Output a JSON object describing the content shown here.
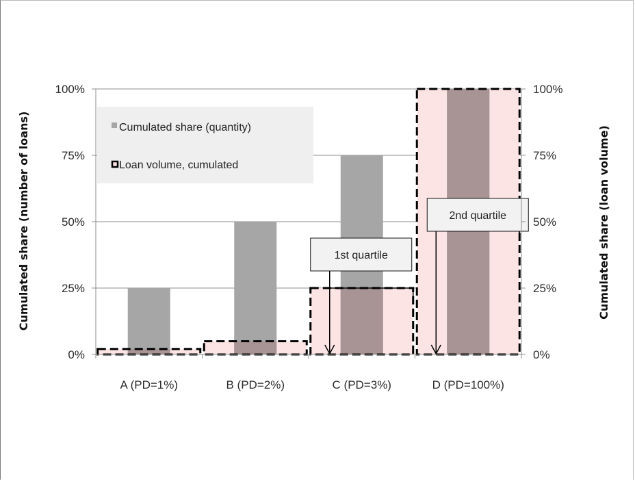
{
  "chart_data": {
    "type": "bar",
    "categories": [
      "A (PD=1%)",
      "B (PD=2%)",
      "C (PD=3%)",
      "D (PD=100%)"
    ],
    "y_ticks": [
      "0%",
      "25%",
      "50%",
      "75%",
      "100%"
    ],
    "y2_ticks": [
      "0%",
      "25%",
      "50%",
      "75%",
      "100%"
    ],
    "ylabel": "Cumulated share (number of loans)",
    "y2label": "Cumulated share (loan volume)",
    "ylim": [
      0,
      100
    ],
    "y2lim": [
      0,
      100
    ],
    "grid": true,
    "legend_position": "top-left",
    "series": [
      {
        "name": "Cumulated share (quantity)",
        "values": [
          25,
          50,
          75,
          100
        ],
        "color": "#a6a6a6"
      },
      {
        "name": "Loan volume, cumulated",
        "values": [
          2,
          5,
          25,
          100
        ],
        "color": "#fde4e4",
        "style": "dashed"
      }
    ],
    "annotations": [
      {
        "text": "1st quartile",
        "category": "C (PD=3%)",
        "y": 25
      },
      {
        "text": "2nd quartile",
        "category": "D (PD=100%)",
        "y": 50
      }
    ]
  }
}
